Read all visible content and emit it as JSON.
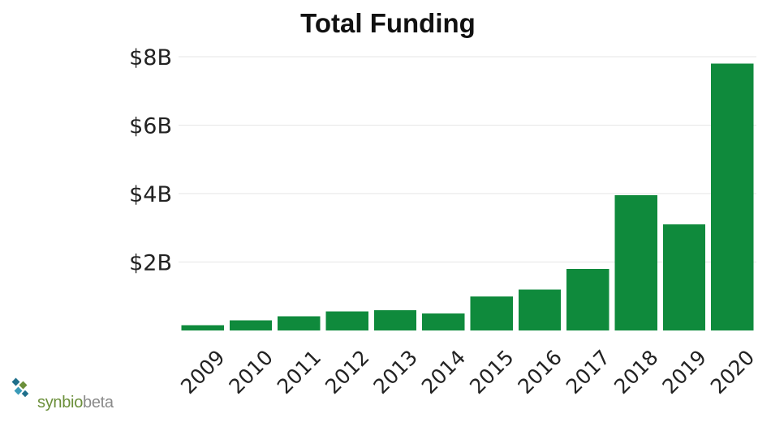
{
  "colors": {
    "bar": "#0f8a3c",
    "text": "#222222",
    "grid": "#e6e6e6"
  },
  "logo": {
    "name": "synbio",
    "suffix": "beta"
  },
  "chart_data": {
    "type": "bar",
    "title": "Total Funding",
    "xlabel": "",
    "ylabel": "",
    "categories": [
      "2009",
      "2010",
      "2011",
      "2012",
      "2013",
      "2014",
      "2015",
      "2016",
      "2017",
      "2018",
      "2019",
      "2020"
    ],
    "values": [
      0.15,
      0.3,
      0.42,
      0.56,
      0.59,
      0.5,
      1.0,
      1.2,
      1.8,
      3.95,
      3.1,
      7.8
    ],
    "unit": "$B",
    "ylim": [
      0,
      8
    ],
    "yticks": [
      2,
      4,
      6,
      8
    ],
    "ytick_labels": [
      "$2B",
      "$4B",
      "$6B",
      "$8B"
    ],
    "grid": true,
    "legend": "none"
  }
}
